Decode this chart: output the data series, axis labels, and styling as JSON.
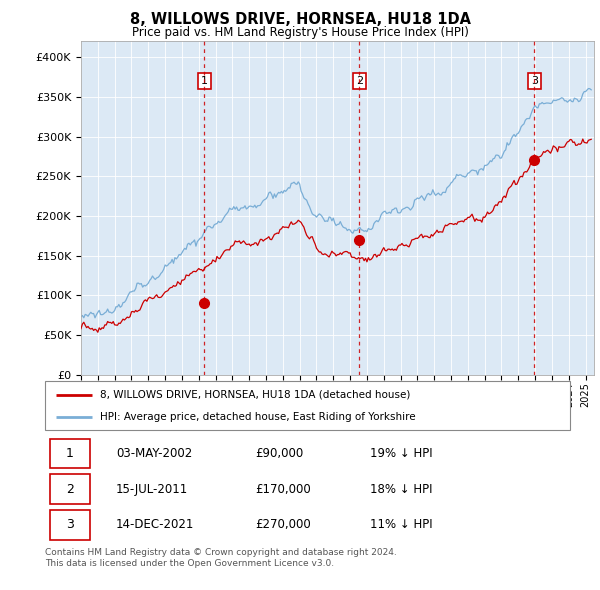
{
  "title": "8, WILLOWS DRIVE, HORNSEA, HU18 1DA",
  "subtitle": "Price paid vs. HM Land Registry's House Price Index (HPI)",
  "sale_prices": [
    90000,
    170000,
    270000
  ],
  "sale_labels": [
    "1",
    "2",
    "3"
  ],
  "sale_year_floats": [
    2002.34,
    2011.54,
    2021.96
  ],
  "red_line_color": "#cc0000",
  "blue_line_color": "#7aaed6",
  "background_color": "#dce9f5",
  "legend_label_red": "8, WILLOWS DRIVE, HORNSEA, HU18 1DA (detached house)",
  "legend_label_blue": "HPI: Average price, detached house, East Riding of Yorkshire",
  "footer": "Contains HM Land Registry data © Crown copyright and database right 2024.\nThis data is licensed under the Open Government Licence v3.0.",
  "ylim": [
    0,
    420000
  ],
  "yticks": [
    0,
    50000,
    100000,
    150000,
    200000,
    250000,
    300000,
    350000,
    400000
  ],
  "ytick_labels": [
    "£0",
    "£50K",
    "£100K",
    "£150K",
    "£200K",
    "£250K",
    "£300K",
    "£350K",
    "£400K"
  ],
  "table_rows": [
    [
      "1",
      "03-MAY-2002",
      "£90,000",
      "19% ↓ HPI"
    ],
    [
      "2",
      "15-JUL-2011",
      "£170,000",
      "18% ↓ HPI"
    ],
    [
      "3",
      "14-DEC-2021",
      "£270,000",
      "11% ↓ HPI"
    ]
  ]
}
